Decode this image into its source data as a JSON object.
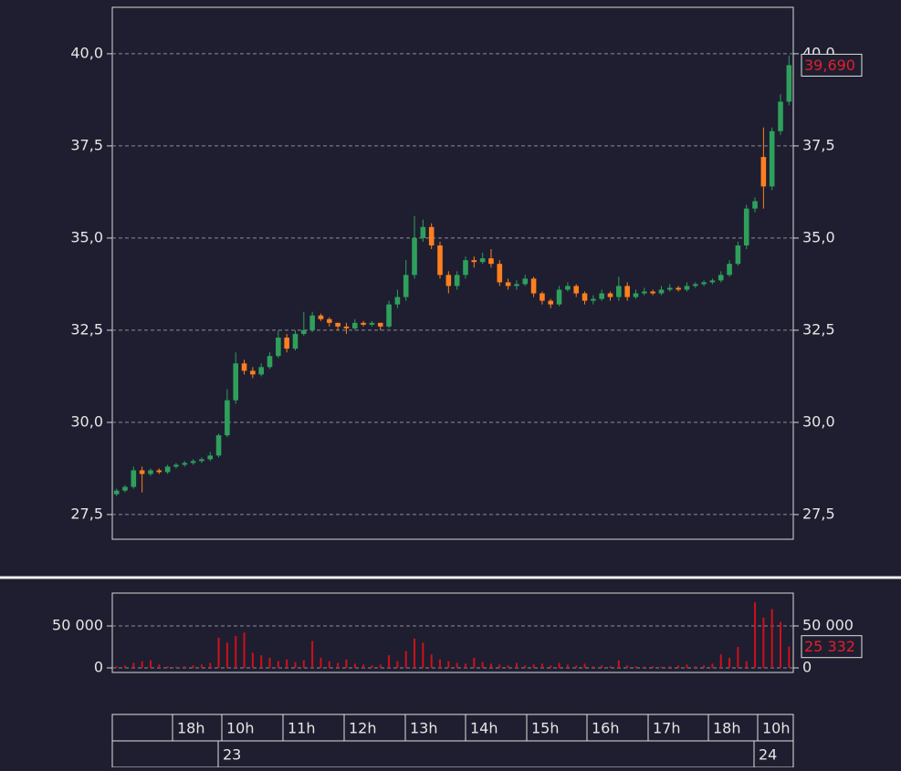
{
  "chart_data": [
    {
      "type": "candlestick",
      "up_color": "#2ea05c",
      "down_color": "#ff7f1e",
      "grid": true,
      "ylim": [
        26.83,
        41.26
      ],
      "yticks": [
        {
          "value": 27.5,
          "label": "27,5"
        },
        {
          "value": 30,
          "label": "30,0"
        },
        {
          "value": 32.5,
          "label": "32,5"
        },
        {
          "value": 35,
          "label": "35,0"
        },
        {
          "value": 37.5,
          "label": "37,5"
        },
        {
          "value": 40,
          "label": "40,0"
        }
      ],
      "open": [
        28.05,
        28.15,
        28.25,
        28.7,
        28.6,
        28.7,
        28.65,
        28.8,
        28.85,
        28.9,
        28.95,
        29.0,
        29.1,
        29.65,
        30.6,
        31.6,
        31.4,
        31.3,
        31.5,
        31.8,
        32.3,
        32.0,
        32.4,
        32.5,
        32.9,
        32.8,
        32.7,
        32.6,
        32.55,
        32.7,
        32.65,
        32.7,
        32.6,
        33.2,
        33.4,
        34.0,
        35.0,
        35.3,
        34.8,
        34.0,
        33.7,
        34.0,
        34.4,
        34.35,
        34.45,
        34.3,
        33.8,
        33.7,
        33.75,
        33.9,
        33.5,
        33.3,
        33.2,
        33.6,
        33.7,
        33.5,
        33.3,
        33.35,
        33.5,
        33.4,
        33.7,
        33.4,
        33.5,
        33.55,
        33.5,
        33.6,
        33.65,
        33.6,
        33.7,
        33.75,
        33.8,
        33.85,
        34.0,
        34.3,
        34.8,
        35.8,
        37.2,
        36.4,
        37.9,
        38.7
      ],
      "high": [
        28.2,
        28.3,
        28.8,
        28.8,
        28.75,
        28.75,
        28.85,
        28.9,
        28.95,
        29.0,
        29.05,
        29.2,
        29.7,
        30.9,
        31.9,
        31.7,
        31.5,
        31.6,
        31.9,
        32.5,
        32.4,
        32.5,
        33.0,
        33.0,
        32.95,
        32.85,
        32.7,
        32.7,
        32.8,
        32.75,
        32.75,
        32.7,
        33.3,
        33.6,
        34.4,
        35.6,
        35.5,
        35.4,
        34.9,
        34.1,
        34.1,
        34.5,
        34.5,
        34.6,
        34.7,
        34.4,
        33.9,
        33.85,
        34.0,
        33.95,
        33.55,
        33.35,
        33.7,
        33.8,
        33.75,
        33.55,
        33.45,
        33.6,
        33.55,
        33.95,
        33.8,
        33.6,
        33.65,
        33.6,
        33.7,
        33.75,
        33.7,
        33.8,
        33.8,
        33.85,
        33.9,
        34.1,
        34.4,
        34.9,
        35.9,
        36.1,
        38.0,
        38.0,
        38.9,
        39.95
      ],
      "low": [
        28.0,
        28.1,
        28.2,
        28.1,
        28.55,
        28.6,
        28.6,
        28.75,
        28.8,
        28.85,
        28.9,
        28.95,
        29.05,
        29.6,
        30.5,
        31.3,
        31.2,
        31.25,
        31.45,
        31.75,
        31.9,
        31.95,
        32.35,
        32.45,
        32.75,
        32.6,
        32.5,
        32.4,
        32.5,
        32.6,
        32.6,
        32.5,
        32.55,
        33.1,
        33.3,
        33.9,
        34.9,
        34.7,
        33.9,
        33.5,
        33.6,
        33.9,
        34.2,
        34.3,
        34.2,
        33.7,
        33.6,
        33.6,
        33.7,
        33.4,
        33.2,
        33.1,
        33.15,
        33.55,
        33.4,
        33.2,
        33.2,
        33.3,
        33.3,
        33.3,
        33.3,
        33.35,
        33.45,
        33.45,
        33.45,
        33.55,
        33.55,
        33.55,
        33.65,
        33.7,
        33.75,
        33.8,
        33.95,
        34.25,
        34.7,
        35.7,
        35.8,
        36.3,
        37.8,
        38.6
      ],
      "close": [
        28.15,
        28.25,
        28.7,
        28.6,
        28.7,
        28.65,
        28.8,
        28.85,
        28.9,
        28.95,
        29.0,
        29.1,
        29.65,
        30.6,
        31.6,
        31.4,
        31.3,
        31.5,
        31.8,
        32.3,
        32.0,
        32.4,
        32.5,
        32.9,
        32.8,
        32.7,
        32.6,
        32.55,
        32.7,
        32.65,
        32.7,
        32.6,
        33.2,
        33.4,
        34.0,
        35.0,
        35.3,
        34.8,
        34.0,
        33.7,
        34.0,
        34.4,
        34.35,
        34.45,
        34.3,
        33.8,
        33.7,
        33.75,
        33.9,
        33.5,
        33.3,
        33.2,
        33.6,
        33.7,
        33.5,
        33.3,
        33.35,
        33.5,
        33.4,
        33.7,
        33.4,
        33.5,
        33.55,
        33.5,
        33.6,
        33.65,
        33.6,
        33.7,
        33.75,
        33.8,
        33.85,
        34.0,
        34.3,
        34.8,
        35.8,
        36.0,
        36.4,
        37.9,
        38.7,
        39.69
      ],
      "last_value": {
        "value": 39.69,
        "label": "39,690"
      }
    },
    {
      "type": "bar",
      "color": "#d0101a",
      "grid": true,
      "ylim": [
        -5435,
        89130
      ],
      "yticks": [
        0,
        {
          "value": 50000,
          "label": "50 000"
        }
      ],
      "values": [
        2000,
        3000,
        6000,
        8000,
        9000,
        4000,
        2000,
        1500,
        2000,
        3000,
        4000,
        6000,
        36000,
        30000,
        38000,
        42000,
        18000,
        15000,
        12000,
        8000,
        10000,
        7000,
        9000,
        32000,
        12000,
        8000,
        6000,
        10000,
        5000,
        4000,
        3000,
        4000,
        15000,
        8000,
        20000,
        35000,
        30000,
        16000,
        10000,
        8000,
        6000,
        5000,
        12000,
        7000,
        5000,
        4000,
        3000,
        6000,
        3000,
        4000,
        5000,
        3000,
        6000,
        4000,
        3000,
        5000,
        2000,
        3000,
        2000,
        9000,
        3000,
        2000,
        1500,
        2000,
        1500,
        2000,
        3000,
        4000,
        2000,
        3000,
        5000,
        16000,
        12000,
        25000,
        8000,
        78000,
        60000,
        70000,
        55000,
        25332
      ],
      "last_value": {
        "value": 25332,
        "label": "25 332"
      }
    }
  ],
  "time_axis": {
    "hours": [
      "18h",
      "10h",
      "11h",
      "12h",
      "13h",
      "14h",
      "15h",
      "16h",
      "17h",
      "18h",
      "10h"
    ],
    "days": [
      "23",
      "24"
    ]
  }
}
